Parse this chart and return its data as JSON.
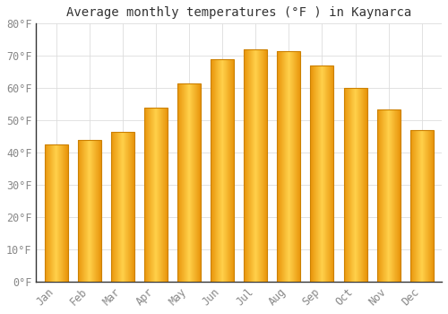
{
  "title": "Average monthly temperatures (°F ) in Kaynarca",
  "months": [
    "Jan",
    "Feb",
    "Mar",
    "Apr",
    "May",
    "Jun",
    "Jul",
    "Aug",
    "Sep",
    "Oct",
    "Nov",
    "Dec"
  ],
  "values": [
    42.5,
    44,
    46.5,
    54,
    61.5,
    69,
    72,
    71.5,
    67,
    60,
    53.5,
    47
  ],
  "bar_color_left": "#E8940A",
  "bar_color_center": "#FFD04A",
  "bar_color_right": "#E8940A",
  "bar_edge_color": "#CC8000",
  "ylim": [
    0,
    80
  ],
  "yticks": [
    0,
    10,
    20,
    30,
    40,
    50,
    60,
    70,
    80
  ],
  "ytick_labels": [
    "0°F",
    "10°F",
    "20°F",
    "30°F",
    "40°F",
    "50°F",
    "60°F",
    "70°F",
    "80°F"
  ],
  "bg_color": "#FFFFFF",
  "grid_color": "#DDDDDD",
  "title_fontsize": 10,
  "tick_fontsize": 8.5,
  "bar_width": 0.7
}
